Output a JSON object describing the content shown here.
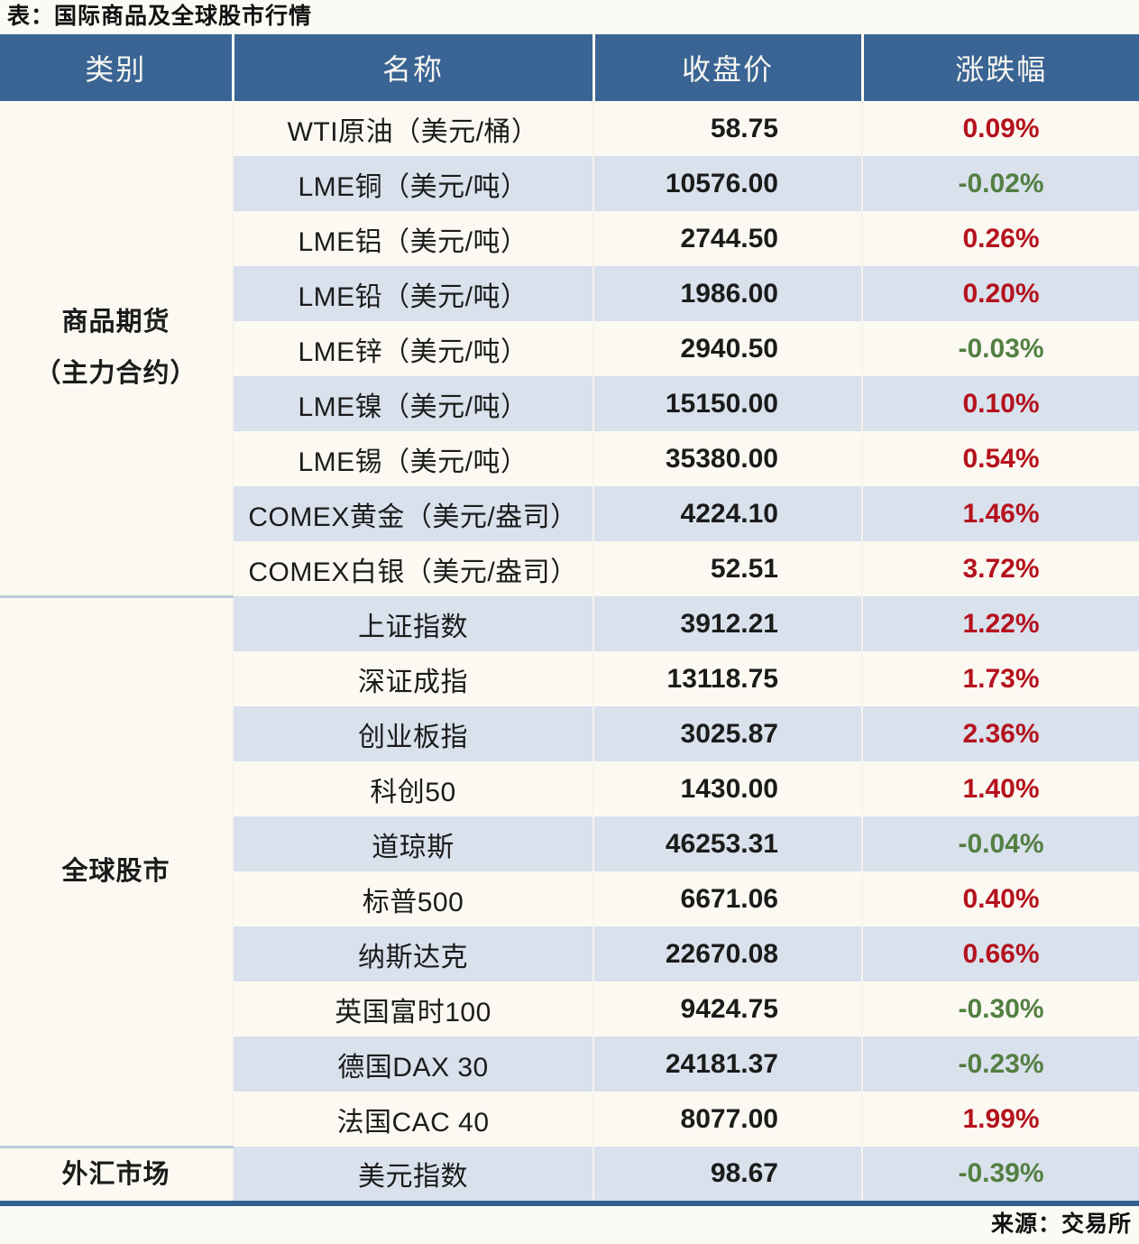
{
  "colors": {
    "header_bg": "#3a6494",
    "row_stripe": "#d8e1ec",
    "row_plain": "#fbf9f2",
    "up": "#b5121d",
    "down": "#537f42",
    "bottom_rule": "#336090"
  },
  "chart_data": {
    "type": "table",
    "title": "表：国际商品及全球股市行情",
    "source": "来源：交易所",
    "columns": [
      "类别",
      "名称",
      "收盘价",
      "涨跌幅"
    ],
    "groups": [
      {
        "category": "商品期货\n（主力合约）",
        "rows": [
          {
            "name": "WTI原油（美元/桶）",
            "close": "58.75",
            "change": "0.09%",
            "change_color": "#b5121d"
          },
          {
            "name": "LME铜（美元/吨）",
            "close": "10576.00",
            "change": "-0.02%",
            "change_color": "#537f42"
          },
          {
            "name": "LME铝（美元/吨）",
            "close": "2744.50",
            "change": "0.26%",
            "change_color": "#b5121d"
          },
          {
            "name": "LME铅（美元/吨）",
            "close": "1986.00",
            "change": "0.20%",
            "change_color": "#b5121d"
          },
          {
            "name": "LME锌（美元/吨）",
            "close": "2940.50",
            "change": "-0.03%",
            "change_color": "#537f42"
          },
          {
            "name": "LME镍（美元/吨）",
            "close": "15150.00",
            "change": "0.10%",
            "change_color": "#b5121d"
          },
          {
            "name": "LME锡（美元/吨）",
            "close": "35380.00",
            "change": "0.54%",
            "change_color": "#b5121d"
          },
          {
            "name": "COMEX黄金（美元/盎司）",
            "close": "4224.10",
            "change": "1.46%",
            "change_color": "#b5121d"
          },
          {
            "name": "COMEX白银（美元/盎司）",
            "close": "52.51",
            "change": "3.72%",
            "change_color": "#b5121d"
          }
        ]
      },
      {
        "category": "全球股市",
        "rows": [
          {
            "name": "上证指数",
            "close": "3912.21",
            "change": "1.22%",
            "change_color": "#b5121d"
          },
          {
            "name": "深证成指",
            "close": "13118.75",
            "change": "1.73%",
            "change_color": "#b5121d"
          },
          {
            "name": "创业板指",
            "close": "3025.87",
            "change": "2.36%",
            "change_color": "#b5121d"
          },
          {
            "name": "科创50",
            "close": "1430.00",
            "change": "1.40%",
            "change_color": "#b5121d"
          },
          {
            "name": "道琼斯",
            "close": "46253.31",
            "change": "-0.04%",
            "change_color": "#537f42"
          },
          {
            "name": "标普500",
            "close": "6671.06",
            "change": "0.40%",
            "change_color": "#b5121d"
          },
          {
            "name": "纳斯达克",
            "close": "22670.08",
            "change": "0.66%",
            "change_color": "#b5121d"
          },
          {
            "name": "英国富时100",
            "close": "9424.75",
            "change": "-0.30%",
            "change_color": "#537f42"
          },
          {
            "name": "德国DAX 30",
            "close": "24181.37",
            "change": "-0.23%",
            "change_color": "#537f42"
          },
          {
            "name": "法国CAC 40",
            "close": "8077.00",
            "change": "1.99%",
            "change_color": "#b5121d"
          }
        ]
      },
      {
        "category": "外汇市场",
        "rows": [
          {
            "name": "美元指数",
            "close": "98.67",
            "change": "-0.39%",
            "change_color": "#537f42"
          }
        ]
      }
    ]
  }
}
